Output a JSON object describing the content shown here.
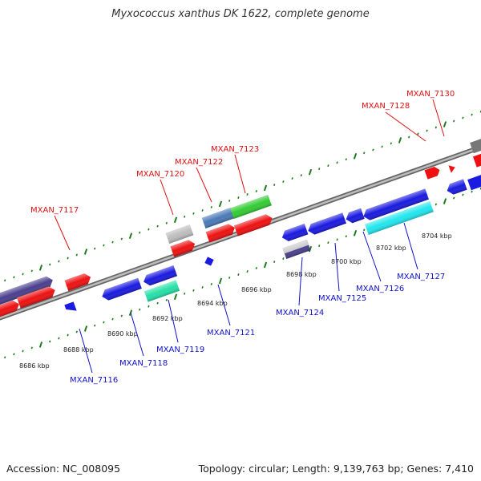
{
  "title": "Myxococcus xanthus DK 1622, complete genome",
  "footer": {
    "accession": "Accession: NC_008095",
    "summary": "Topology: circular; Length: 9,139,763 bp; Genes: 7,410"
  },
  "colors": {
    "forward_label": "#dd1111",
    "reverse_label": "#1111cc",
    "tick": "#1e7a1e",
    "backbone": "#8c8c8c"
  },
  "kbp_labels": [
    "8686 kbp",
    "8688 kbp",
    "8690 kbp",
    "8692 kbp",
    "8694 kbp",
    "8696 kbp",
    "8698 kbp",
    "8700 kbp",
    "8702 kbp",
    "8704 kbp"
  ],
  "forward_genes": [
    {
      "name": "MXAN_7117",
      "color": "#ee1111"
    },
    {
      "name": "MXAN_7120",
      "color": "#ee1111"
    },
    {
      "name": "MXAN_7122",
      "color": "#ee1111"
    },
    {
      "name": "MXAN_7123",
      "color": "#ee1111"
    },
    {
      "name": "MXAN_7128",
      "color": "#ee1111"
    },
    {
      "name": "MXAN_7130",
      "color": "#ee1111"
    }
  ],
  "reverse_genes": [
    {
      "name": "MXAN_7116",
      "color": "#1a1ae0"
    },
    {
      "name": "MXAN_7118",
      "color": "#1a1ae0"
    },
    {
      "name": "MXAN_7119",
      "color": "#1a1ae0"
    },
    {
      "name": "MXAN_7121",
      "color": "#1a1ae0"
    },
    {
      "name": "MXAN_7124",
      "color": "#1a1ae0"
    },
    {
      "name": "MXAN_7125",
      "color": "#1a1ae0"
    },
    {
      "name": "MXAN_7126",
      "color": "#1a1ae0"
    },
    {
      "name": "MXAN_7127",
      "color": "#1a1ae0"
    }
  ]
}
